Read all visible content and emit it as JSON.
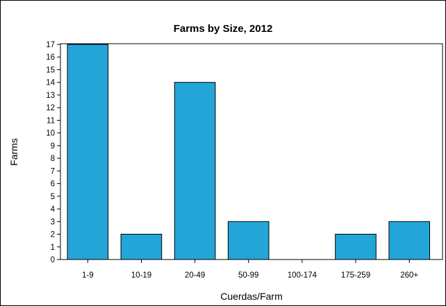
{
  "chart_data": {
    "type": "bar",
    "title": "Farms by Size, 2012",
    "xlabel": "Cuerdas/Farm",
    "ylabel": "Farms",
    "categories": [
      "1-9",
      "10-19",
      "20-49",
      "50-99",
      "100-174",
      "175-259",
      "260+"
    ],
    "values": [
      17,
      2,
      14,
      3,
      0,
      2,
      3
    ],
    "ylim": [
      0,
      17
    ],
    "yticks": [
      0,
      1,
      2,
      3,
      4,
      5,
      6,
      7,
      8,
      9,
      10,
      11,
      12,
      13,
      14,
      15,
      16,
      17
    ],
    "grid": false,
    "bar_color": "#23a5d8"
  }
}
